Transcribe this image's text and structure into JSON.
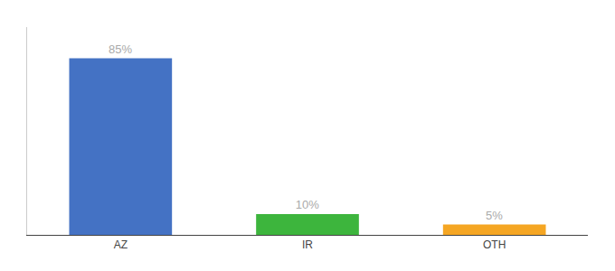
{
  "chart_data": {
    "type": "bar",
    "categories": [
      "AZ",
      "IR",
      "OTH"
    ],
    "values": [
      85,
      10,
      5
    ],
    "value_labels": [
      "85%",
      "10%",
      "5%"
    ],
    "colors": [
      "#4472c4",
      "#3db53d",
      "#f5a623"
    ],
    "ylim": [
      0,
      100
    ],
    "data_labels": true,
    "tick_labels": "x",
    "grid": false
  }
}
